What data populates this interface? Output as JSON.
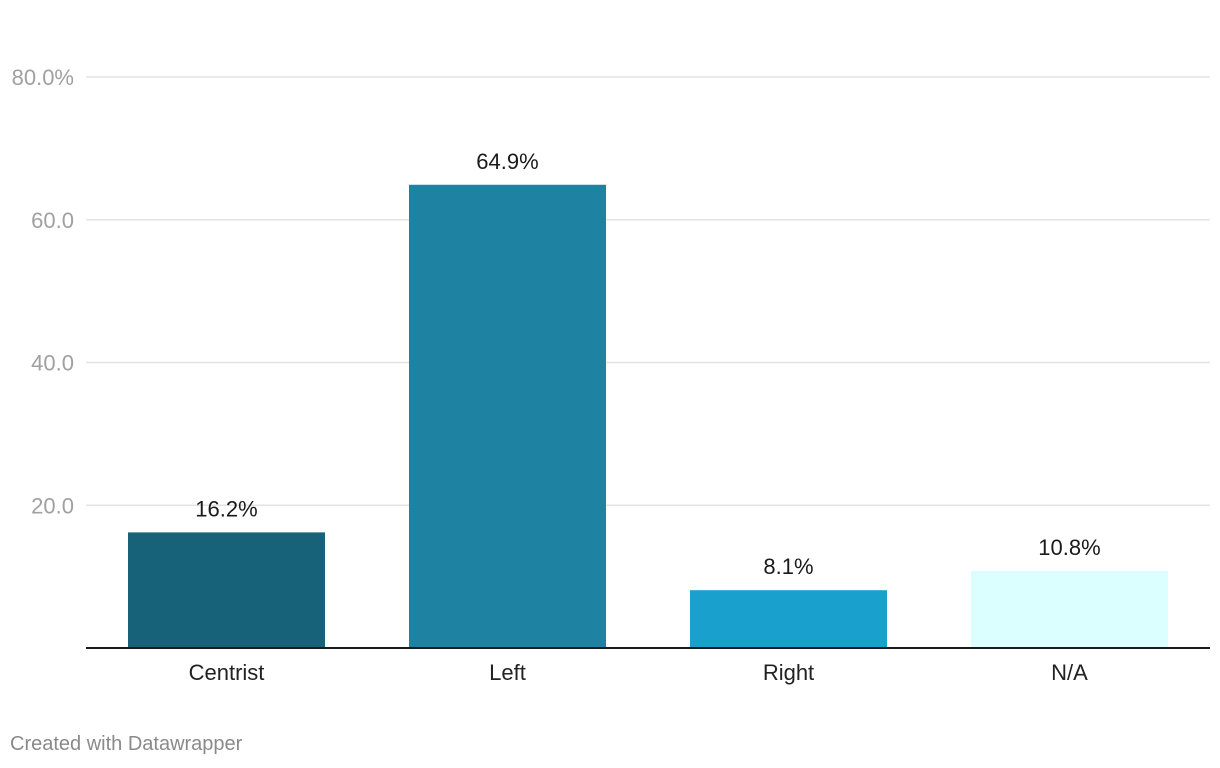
{
  "chart_data": {
    "type": "bar",
    "categories": [
      "Centrist",
      "Left",
      "Right",
      "N/A"
    ],
    "values": [
      16.2,
      64.9,
      8.1,
      10.8
    ],
    "value_labels": [
      "16.2%",
      "64.9%",
      "8.1%",
      "10.8%"
    ],
    "bar_colors": [
      "#176179",
      "#1e82a2",
      "#19a0cc",
      "#dbfeff"
    ],
    "ylim": [
      0,
      80
    ],
    "yticks": [
      20,
      40,
      60,
      80
    ],
    "ytick_labels": [
      "20.0",
      "40.0",
      "60.0",
      "80.0%"
    ],
    "grid": true,
    "title": "",
    "xlabel": "",
    "ylabel": ""
  },
  "footer": {
    "credit": "Created with Datawrapper"
  }
}
